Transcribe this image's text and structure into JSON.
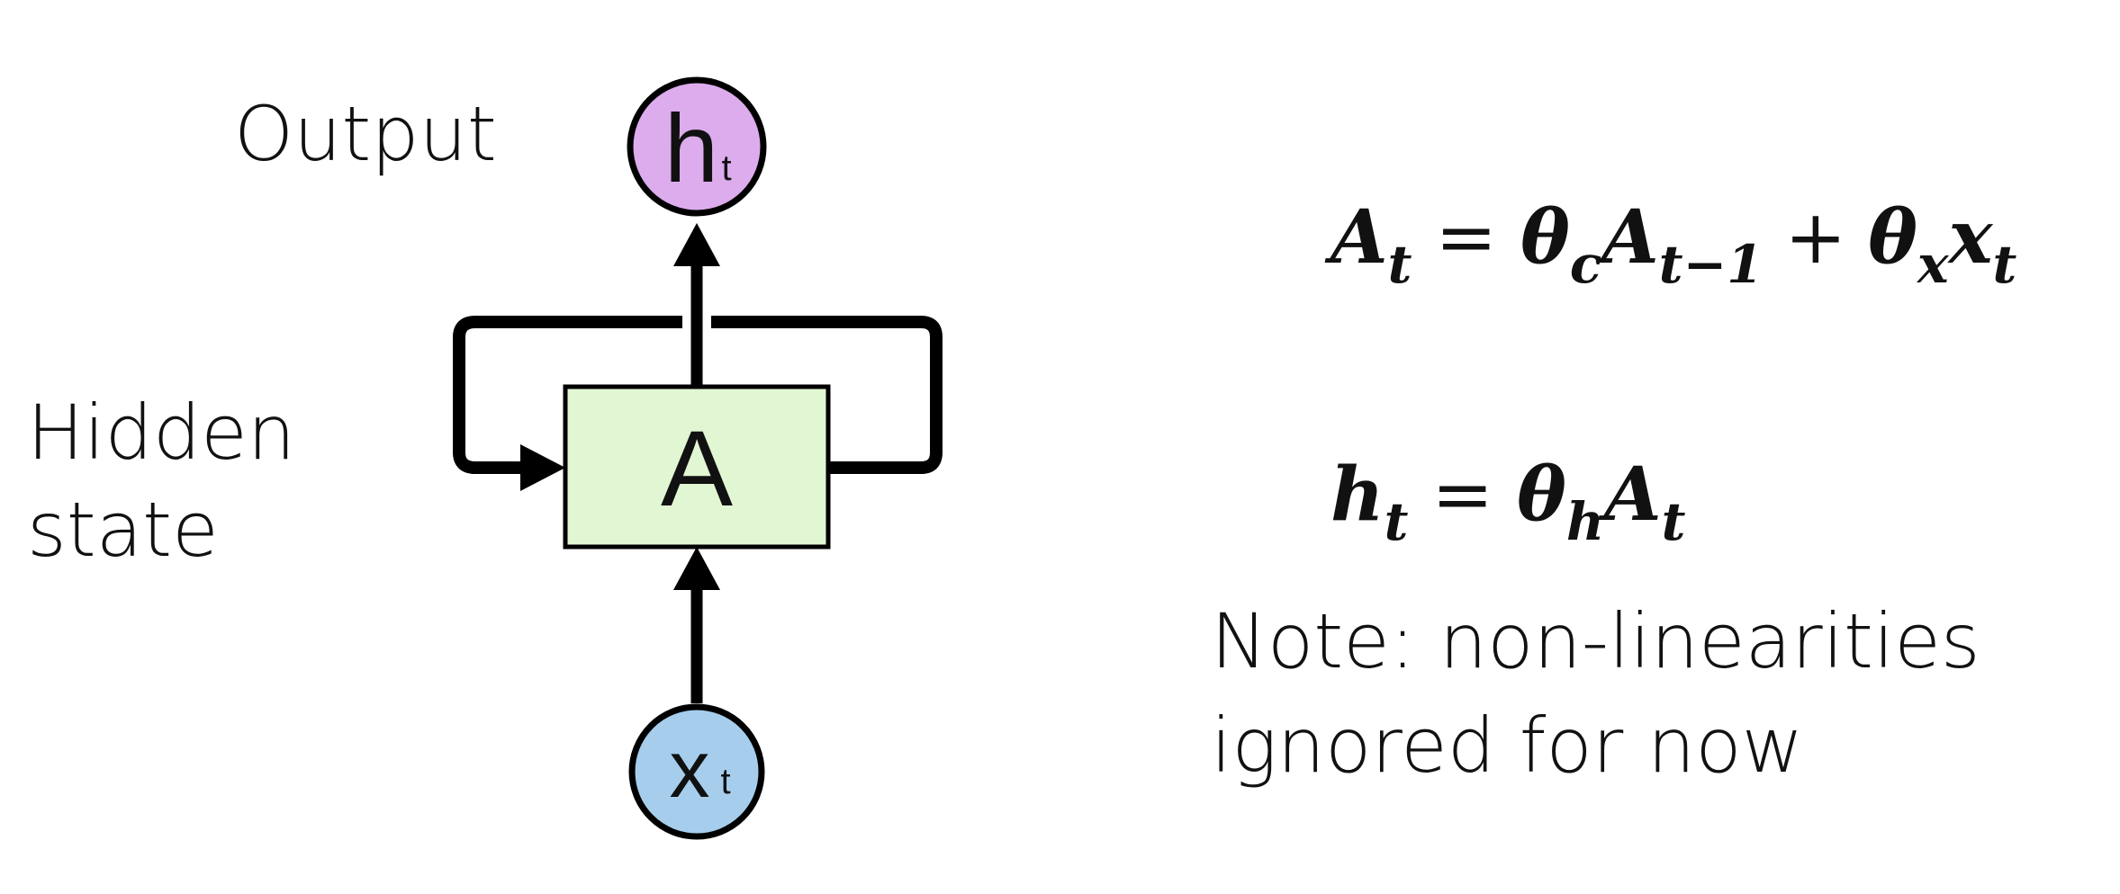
{
  "diagram": {
    "output_label": "Output",
    "hidden_label_line1": "Hidden",
    "hidden_label_line2": "state",
    "output_node": {
      "main": "h",
      "sub": "t"
    },
    "cell": {
      "label": "A"
    },
    "input_node": {
      "main": "x",
      "sub": "t"
    },
    "colors": {
      "output_node_fill": "#dcaced",
      "cell_fill": "#e1f6d2",
      "input_node_fill": "#a6ceec",
      "stroke": "#000000"
    }
  },
  "equations": {
    "eq1": {
      "lhs": "A",
      "lhs_sub": "t",
      "equals": "=",
      "t1_coef": "θ",
      "t1_coef_sub": "c",
      "t1_var": "A",
      "t1_var_sub": "t−1",
      "plus": "+",
      "t2_coef": "θ",
      "t2_coef_sub": "x",
      "t2_var": "x",
      "t2_var_sub": "t"
    },
    "eq2": {
      "lhs": "h",
      "lhs_sub": "t",
      "equals": "=",
      "coef": "θ",
      "coef_sub": "h",
      "var": "A",
      "var_sub": "t"
    }
  },
  "note": {
    "line1": "Note: non-linearities",
    "line2": "ignored for now"
  }
}
